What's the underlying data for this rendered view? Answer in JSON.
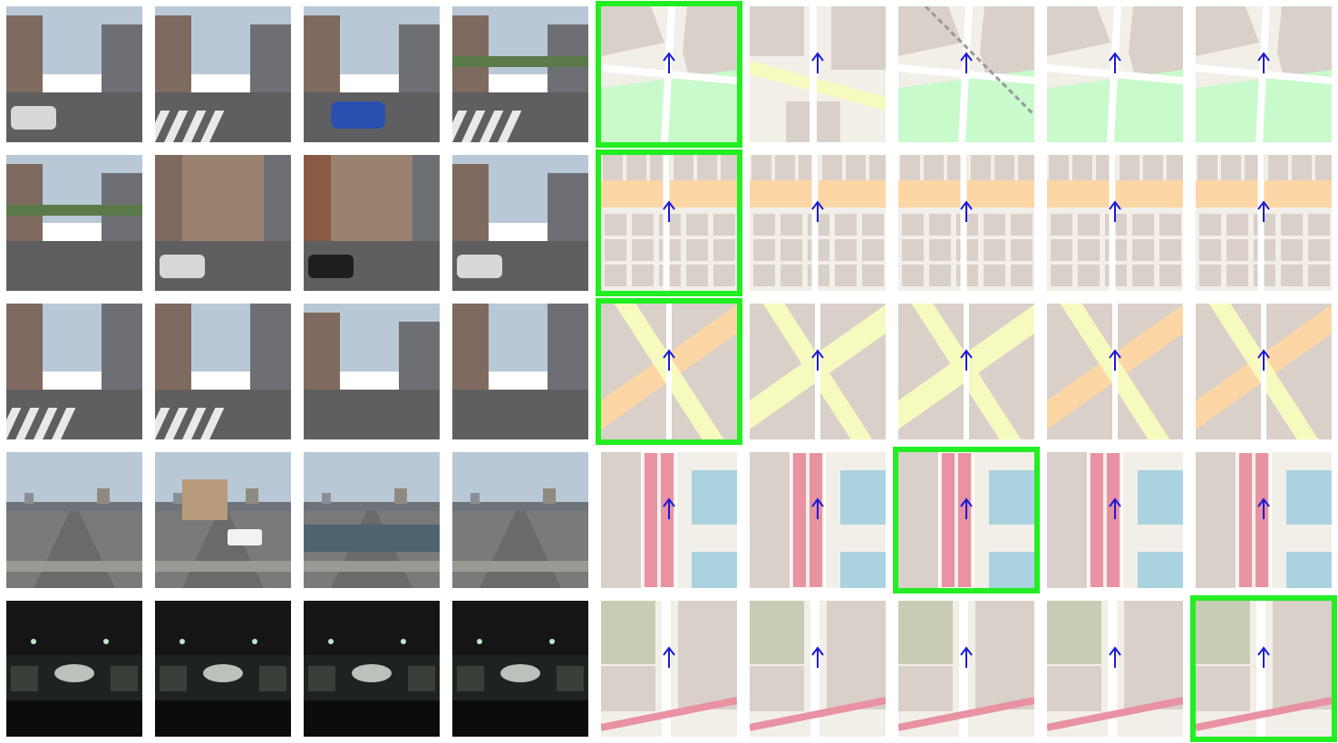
{
  "grid": {
    "rows": [
      {
        "street_views": [
          "day-street-buildings",
          "day-crosswalk-corner",
          "day-street-blue-car",
          "day-plaza-crosswalk"
        ],
        "maps": [
          {
            "style": "park-corner",
            "selected": true
          },
          {
            "style": "yellow-road",
            "selected": false
          },
          {
            "style": "railway-park",
            "selected": false
          },
          {
            "style": "park-corner",
            "selected": false
          },
          {
            "style": "park-corner",
            "selected": false
          }
        ]
      },
      {
        "street_views": [
          "day-wide-avenue",
          "day-storefront",
          "day-brick-building",
          "day-parked-cars"
        ],
        "maps": [
          {
            "style": "orange-avenue",
            "selected": true
          },
          {
            "style": "orange-avenue",
            "selected": false
          },
          {
            "style": "orange-avenue",
            "selected": false
          },
          {
            "style": "orange-avenue",
            "selected": false
          },
          {
            "style": "orange-avenue",
            "selected": false
          }
        ]
      },
      {
        "street_views": [
          "day-towers-crosswalk",
          "day-avenue-towers",
          "day-corner-pedestrians",
          "day-historic-building"
        ],
        "maps": [
          {
            "style": "diagonal-avenues",
            "selected": true
          },
          {
            "style": "diagonal-yellow",
            "selected": false
          },
          {
            "style": "diagonal-yellow",
            "selected": false
          },
          {
            "style": "diagonal-avenues",
            "selected": false
          },
          {
            "style": "diagonal-avenues",
            "selected": false
          }
        ]
      },
      {
        "street_views": [
          "day-highway",
          "day-highway-van",
          "day-highway-river",
          "day-highway-pier"
        ],
        "maps": [
          {
            "style": "red-highway",
            "selected": false
          },
          {
            "style": "red-highway",
            "selected": false
          },
          {
            "style": "red-highway",
            "selected": true
          },
          {
            "style": "red-highway",
            "selected": false
          },
          {
            "style": "red-highway",
            "selected": false
          }
        ]
      },
      {
        "street_views": [
          "night-tunnel",
          "night-tunnel",
          "night-tunnel",
          "night-tunnel"
        ],
        "maps": [
          {
            "style": "grey-blocks",
            "selected": false
          },
          {
            "style": "grey-blocks",
            "selected": false
          },
          {
            "style": "grey-blocks",
            "selected": false
          },
          {
            "style": "grey-blocks",
            "selected": false
          },
          {
            "style": "grey-blocks",
            "selected": true
          }
        ]
      }
    ]
  },
  "colors": {
    "highlight": "#22ee22",
    "heading_arrow": "#1a1ad8",
    "building": "#d9d0c9",
    "land": "#f2efe9",
    "park": "#c8facc",
    "primary_road": "#fcd6a4",
    "secondary_road": "#f7fabf",
    "motorway": "#e892a2",
    "water": "#aad3df"
  }
}
